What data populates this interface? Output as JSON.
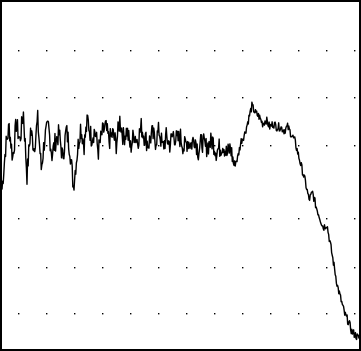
{
  "chart_data": {
    "type": "line",
    "title": "",
    "xlabel": "",
    "ylabel": "",
    "xlim": [
      0,
      1
    ],
    "ylim": [
      0,
      1
    ],
    "grid": "dotted",
    "legend": "none",
    "colors": {
      "line": "#000000",
      "frame": "#000000",
      "grid": "#000000",
      "background": "#ffffff"
    },
    "series": [
      {
        "x": [
          0.0,
          0.01,
          0.02,
          0.03,
          0.04,
          0.05,
          0.06,
          0.07,
          0.08,
          0.09,
          0.1,
          0.11,
          0.12,
          0.13,
          0.14,
          0.15,
          0.16,
          0.17,
          0.18,
          0.19,
          0.2,
          0.21,
          0.22,
          0.23,
          0.24,
          0.25,
          0.26,
          0.27,
          0.28,
          0.29,
          0.3,
          0.31,
          0.32,
          0.33,
          0.34,
          0.35,
          0.36,
          0.37,
          0.38,
          0.39,
          0.4,
          0.41,
          0.42,
          0.43,
          0.44,
          0.45,
          0.46,
          0.47,
          0.48,
          0.49,
          0.5,
          0.51,
          0.52,
          0.53,
          0.54,
          0.55,
          0.56,
          0.57,
          0.58,
          0.59,
          0.6,
          0.61,
          0.62,
          0.63,
          0.64,
          0.65,
          0.66,
          0.67,
          0.68,
          0.69,
          0.7,
          0.71,
          0.72,
          0.73,
          0.74,
          0.75,
          0.76,
          0.77,
          0.78,
          0.79,
          0.8,
          0.81,
          0.82,
          0.83,
          0.84,
          0.85,
          0.86,
          0.87,
          0.88,
          0.89,
          0.9,
          0.91,
          0.92,
          0.93,
          0.94,
          0.95,
          0.96,
          0.97,
          0.98,
          0.99,
          1.0
        ],
        "y": [
          0.46,
          0.58,
          0.64,
          0.55,
          0.65,
          0.6,
          0.68,
          0.5,
          0.63,
          0.58,
          0.66,
          0.52,
          0.61,
          0.64,
          0.56,
          0.6,
          0.62,
          0.55,
          0.63,
          0.58,
          0.47,
          0.56,
          0.64,
          0.59,
          0.66,
          0.61,
          0.63,
          0.57,
          0.62,
          0.64,
          0.6,
          0.62,
          0.59,
          0.66,
          0.61,
          0.63,
          0.58,
          0.62,
          0.6,
          0.64,
          0.61,
          0.59,
          0.62,
          0.6,
          0.63,
          0.58,
          0.61,
          0.59,
          0.62,
          0.6,
          0.61,
          0.58,
          0.6,
          0.59,
          0.61,
          0.57,
          0.6,
          0.58,
          0.59,
          0.6,
          0.57,
          0.58,
          0.59,
          0.56,
          0.58,
          0.53,
          0.55,
          0.6,
          0.62,
          0.66,
          0.7,
          0.68,
          0.67,
          0.65,
          0.66,
          0.64,
          0.65,
          0.64,
          0.64,
          0.63,
          0.64,
          0.62,
          0.6,
          0.56,
          0.52,
          0.48,
          0.43,
          0.45,
          0.41,
          0.38,
          0.35,
          0.36,
          0.3,
          0.24,
          0.18,
          0.14,
          0.1,
          0.08,
          0.05,
          0.04,
          0.03
        ]
      }
    ]
  }
}
